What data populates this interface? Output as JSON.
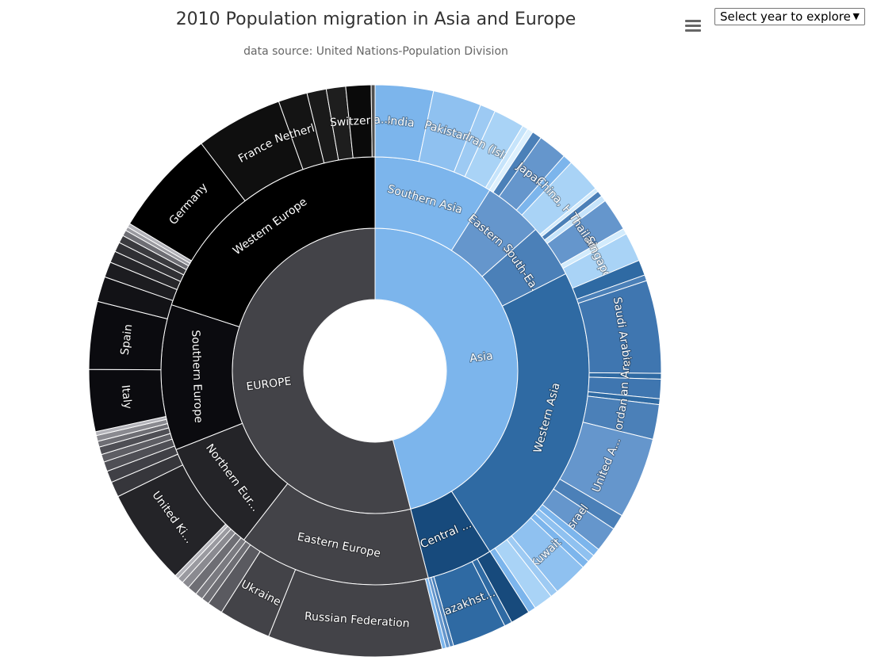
{
  "header": {
    "title": "2010 Population migration in Asia and Europe",
    "subtitle": "data source:   United Nations-Population Division"
  },
  "controls": {
    "year_select_label": "Select year to explore",
    "menu_icon": "hamburger-menu-icon"
  },
  "chart_data": {
    "type": "sunburst",
    "title": "2010 Population migration in Asia and Europe",
    "subtitle": "data source:   United Nations-Population Division",
    "levels": [
      [
        {
          "name": "Asia",
          "value": 46,
          "color": "#7cb5ec"
        },
        {
          "name": "EUROPE",
          "value": 54,
          "color": "#434348"
        }
      ],
      [
        {
          "name": "Southern Asia",
          "value": 9.0,
          "color": "#7cb5ec"
        },
        {
          "name": "Eastern ...",
          "value": 4.5,
          "color": "#6596cc"
        },
        {
          "name": "South-Ea...",
          "value": 4.0,
          "color": "#4b80b8"
        },
        {
          "name": "Western Asia",
          "value": 23.5,
          "color": "#2f6aa3"
        },
        {
          "name": "Central ...",
          "value": 5.0,
          "color": "#174a7c"
        },
        {
          "name": "Eastern Europe",
          "value": 14.5,
          "color": "#434348"
        },
        {
          "name": "Northern Eur...",
          "value": 8.5,
          "color": "#242428"
        },
        {
          "name": "Southern Europe",
          "value": 11.0,
          "color": "#0b0b0f"
        },
        {
          "name": "Western Europe",
          "value": 20.0,
          "color": "#000000"
        }
      ],
      [
        {
          "name": "India",
          "value": 3.0,
          "color": "#7cb5ec"
        },
        {
          "name": "Pakistan",
          "value": 2.5,
          "color": "#8fc1f0"
        },
        {
          "name": "",
          "value": 0.8,
          "color": "#9dcaf3"
        },
        {
          "name": "Iran (Isla...",
          "value": 1.6,
          "color": "#a9d3f6"
        },
        {
          "name": "",
          "value": 0.3,
          "color": "#c6e4fb"
        },
        {
          "name": "",
          "value": 0.3,
          "color": "#ddf0fd"
        },
        {
          "name": "",
          "value": 0.5,
          "color": "#4b80b8"
        },
        {
          "name": "Japan",
          "value": 1.5,
          "color": "#6596cc"
        },
        {
          "name": "",
          "value": 0.5,
          "color": "#7cb5ec"
        },
        {
          "name": "China, H...",
          "value": 1.8,
          "color": "#a9d3f6"
        },
        {
          "name": "",
          "value": 0.2,
          "color": "#d2ebfc"
        },
        {
          "name": "",
          "value": 0.3,
          "color": "#4b80b8"
        },
        {
          "name": "",
          "value": 0.3,
          "color": "#c6e4fb"
        },
        {
          "name": "Thailand",
          "value": 1.7,
          "color": "#6596cc"
        },
        {
          "name": "",
          "value": 0.3,
          "color": "#d2ebfc"
        },
        {
          "name": "Singapore",
          "value": 1.5,
          "color": "#a9d3f6"
        },
        {
          "name": "",
          "value": 0.8,
          "color": "#2f6aa3"
        },
        {
          "name": "",
          "value": 0.3,
          "color": "#4b80b8"
        },
        {
          "name": "Saudi Arabia",
          "value": 4.8,
          "color": "#3f76b0"
        },
        {
          "name": "",
          "value": 0.3,
          "color": "#2f6aa3"
        },
        {
          "name": "Syrian Ar...",
          "value": 1.0,
          "color": "#3f76b0"
        },
        {
          "name": "",
          "value": 0.3,
          "color": "#2f6aa3"
        },
        {
          "name": "Jordan",
          "value": 1.8,
          "color": "#4b80b8"
        },
        {
          "name": "United A...",
          "value": 4.2,
          "color": "#6596cc"
        },
        {
          "name": "",
          "value": 0.8,
          "color": "#4b80b8"
        },
        {
          "name": "Israel",
          "value": 1.3,
          "color": "#6596cc"
        },
        {
          "name": "",
          "value": 0.4,
          "color": "#7cb5ec"
        },
        {
          "name": "",
          "value": 0.4,
          "color": "#8fc1f0"
        },
        {
          "name": "",
          "value": 0.4,
          "color": "#7cb5ec"
        },
        {
          "name": "Kuwait",
          "value": 1.8,
          "color": "#8fc1f0"
        },
        {
          "name": "",
          "value": 0.4,
          "color": "#9dcaf3"
        },
        {
          "name": "",
          "value": 1.0,
          "color": "#a9d3f6"
        },
        {
          "name": "",
          "value": 0.4,
          "color": "#7cb5ec"
        },
        {
          "name": "",
          "value": 1.0,
          "color": "#174a7c"
        },
        {
          "name": "",
          "value": 0.4,
          "color": "#2f6aa3"
        },
        {
          "name": "Kazakhst...",
          "value": 2.8,
          "color": "#2f6aa3"
        },
        {
          "name": "",
          "value": 0.2,
          "color": "#4b80b8"
        },
        {
          "name": "",
          "value": 0.2,
          "color": "#6596cc"
        },
        {
          "name": "",
          "value": 0.2,
          "color": "#7cb5ec"
        },
        {
          "name": "Russian Federation",
          "value": 9.0,
          "color": "#434348"
        },
        {
          "name": "Ukraine",
          "value": 2.7,
          "color": "#434348"
        },
        {
          "name": "",
          "value": 0.8,
          "color": "#5a5a60"
        },
        {
          "name": "",
          "value": 0.4,
          "color": "#6e6e74"
        },
        {
          "name": "",
          "value": 0.4,
          "color": "#7a7a80"
        },
        {
          "name": "",
          "value": 0.5,
          "color": "#6e6e74"
        },
        {
          "name": "",
          "value": 0.4,
          "color": "#8a8a90"
        },
        {
          "name": "",
          "value": 0.3,
          "color": "#9a9aa0"
        },
        {
          "name": "",
          "value": 0.2,
          "color": "#b4b4ba"
        },
        {
          "name": "United Ki...",
          "value": 5.0,
          "color": "#242428"
        },
        {
          "name": "",
          "value": 0.8,
          "color": "#36363b"
        },
        {
          "name": "",
          "value": 0.6,
          "color": "#404046"
        },
        {
          "name": "",
          "value": 0.5,
          "color": "#4f4f55"
        },
        {
          "name": "",
          "value": 0.4,
          "color": "#5e5e64"
        },
        {
          "name": "",
          "value": 0.4,
          "color": "#4f4f55"
        },
        {
          "name": "",
          "value": 0.3,
          "color": "#6e6e74"
        },
        {
          "name": "",
          "value": 0.3,
          "color": "#8a8a90"
        },
        {
          "name": "",
          "value": 0.2,
          "color": "#b4b4ba"
        },
        {
          "name": "Italy",
          "value": 3.2,
          "color": "#0b0b0f"
        },
        {
          "name": "Spain",
          "value": 3.5,
          "color": "#0b0b0f"
        },
        {
          "name": "",
          "value": 1.3,
          "color": "#121216"
        },
        {
          "name": "",
          "value": 0.8,
          "color": "#1c1c20"
        },
        {
          "name": "",
          "value": 0.6,
          "color": "#26262a"
        },
        {
          "name": "",
          "value": 0.5,
          "color": "#303034"
        },
        {
          "name": "",
          "value": 0.4,
          "color": "#3a3a3e"
        },
        {
          "name": "",
          "value": 0.3,
          "color": "#6e6e74"
        },
        {
          "name": "",
          "value": 0.2,
          "color": "#9a9aa0"
        },
        {
          "name": "",
          "value": 0.2,
          "color": "#b4b4ba"
        },
        {
          "name": "Germany",
          "value": 5.5,
          "color": "#000000"
        },
        {
          "name": "France",
          "value": 4.5,
          "color": "#0f0f0f"
        },
        {
          "name": "Netherla...",
          "value": 1.5,
          "color": "#141414"
        },
        {
          "name": "",
          "value": 1.0,
          "color": "#1a1a1a"
        },
        {
          "name": "",
          "value": 1.0,
          "color": "#1e1e1e"
        },
        {
          "name": "Switzerla...",
          "value": 1.3,
          "color": "#0a0a0a"
        },
        {
          "name": "",
          "value": 0.2,
          "color": "#505050"
        }
      ]
    ]
  }
}
